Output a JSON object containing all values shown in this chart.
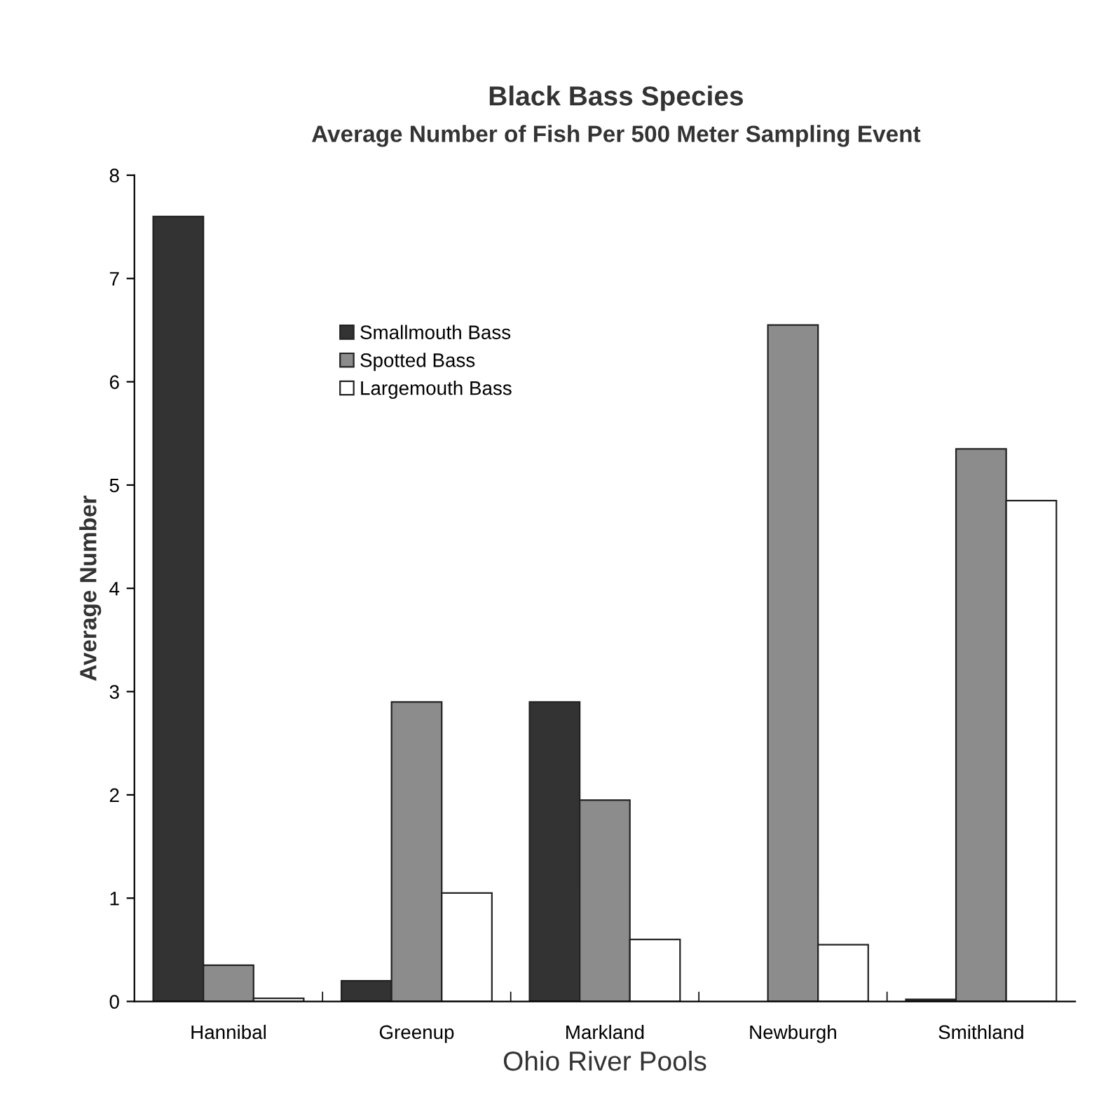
{
  "chart_data": {
    "type": "bar",
    "title": "Black Bass Species",
    "subtitle": "Average Number of Fish Per 500 Meter Sampling Event",
    "xlabel": "Ohio River Pools",
    "ylabel": "Average Number",
    "categories": [
      "Hannibal",
      "Greenup",
      "Markland",
      "Newburgh",
      "Smithland"
    ],
    "series": [
      {
        "name": "Smallmouth Bass",
        "color": "#333333",
        "values": [
          7.6,
          0.2,
          2.9,
          null,
          0.02
        ]
      },
      {
        "name": "Spotted Bass",
        "color": "#8c8c8c",
        "values": [
          0.35,
          2.9,
          1.95,
          6.55,
          5.35
        ]
      },
      {
        "name": "Largemouth Bass",
        "color": "#ffffff",
        "values": [
          0.03,
          1.05,
          0.6,
          0.55,
          4.85
        ]
      }
    ],
    "ylim": [
      0,
      8
    ],
    "yticks": [
      0,
      1,
      2,
      3,
      4,
      5,
      6,
      7,
      8
    ],
    "grid": false,
    "legend": "top left"
  }
}
